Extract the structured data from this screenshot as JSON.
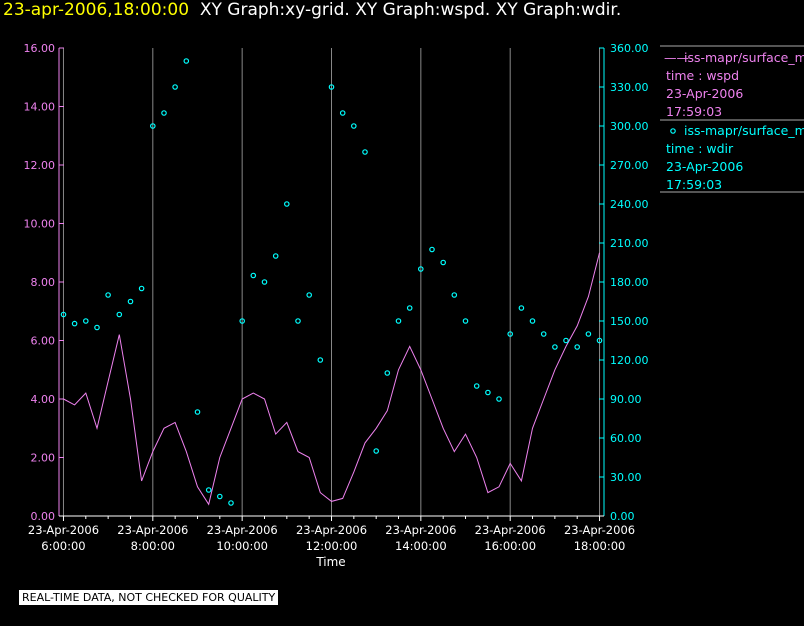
{
  "header": {
    "timestamp": "23-apr-2006,18:00:00",
    "graphs": "XY Graph:xy-grid.  XY Graph:wspd.  XY Graph:wdir."
  },
  "notice": "REAL-TIME DATA, NOT CHECKED FOR QUALITY",
  "legend": [
    {
      "marker": "——",
      "name": "iss-mapr/surface_m",
      "var": "time : wspd",
      "date": "23-Apr-2006",
      "time": "17:59:03",
      "color": "#ee82ee"
    },
    {
      "marker": "o",
      "name": "iss-mapr/surface_m",
      "var": "time : wdir",
      "date": "23-Apr-2006",
      "time": "17:59:03",
      "color": "#00ffff"
    }
  ],
  "chart_data": {
    "type": "line",
    "xlabel": "Time",
    "xlim": [
      5.9,
      18.1
    ],
    "x_ticks": [
      6,
      8,
      10,
      12,
      14,
      16,
      18
    ],
    "x_tick_labels": [
      [
        "23-Apr-2006",
        "6:00:00"
      ],
      [
        "23-Apr-2006",
        "8:00:00"
      ],
      [
        "23-Apr-2006",
        "10:00:00"
      ],
      [
        "23-Apr-2006",
        "12:00:00"
      ],
      [
        "23-Apr-2006",
        "14:00:00"
      ],
      [
        "23-Apr-2006",
        "16:00:00"
      ],
      [
        "23-Apr-2006",
        "18:00:00"
      ]
    ],
    "y_left": {
      "lim": [
        0,
        16
      ],
      "ticks": [
        "0.00",
        "2.00",
        "4.00",
        "6.00",
        "8.00",
        "10.00",
        "12.00",
        "14.00",
        "16.00"
      ],
      "color": "#ee82ee"
    },
    "y_right": {
      "lim": [
        0,
        360
      ],
      "ticks": [
        "0.00",
        "30.00",
        "60.00",
        "90.00",
        "120.00",
        "150.00",
        "180.00",
        "210.00",
        "240.00",
        "270.00",
        "300.00",
        "330.00",
        "360.00"
      ],
      "color": "#00ffff"
    },
    "grid": "vertical",
    "series": [
      {
        "name": "wspd",
        "style": "line",
        "color": "#ee82ee",
        "axis": "left",
        "x": [
          6.0,
          6.25,
          6.5,
          6.75,
          7.0,
          7.25,
          7.5,
          7.75,
          8.0,
          8.25,
          8.5,
          8.75,
          9.0,
          9.25,
          9.5,
          9.75,
          10.0,
          10.25,
          10.5,
          10.75,
          11.0,
          11.25,
          11.5,
          11.75,
          12.0,
          12.25,
          12.5,
          12.75,
          13.0,
          13.25,
          13.5,
          13.75,
          14.0,
          14.25,
          14.5,
          14.75,
          15.0,
          15.25,
          15.5,
          15.75,
          16.0,
          16.25,
          16.5,
          16.75,
          17.0,
          17.25,
          17.5,
          17.75,
          18.0
        ],
        "y": [
          4.0,
          3.8,
          4.2,
          3.0,
          4.6,
          6.2,
          4.0,
          1.2,
          2.2,
          3.0,
          3.2,
          2.2,
          1.0,
          0.4,
          2.0,
          3.0,
          4.0,
          4.2,
          4.0,
          2.8,
          3.2,
          2.2,
          2.0,
          0.8,
          0.5,
          0.6,
          1.5,
          2.5,
          3.0,
          3.6,
          5.0,
          5.8,
          5.0,
          4.0,
          3.0,
          2.2,
          2.8,
          2.0,
          0.8,
          1.0,
          1.8,
          1.2,
          3.0,
          4.0,
          5.0,
          5.8,
          6.5,
          7.5,
          9.0
        ]
      },
      {
        "name": "wdir",
        "style": "markers",
        "color": "#00ffff",
        "axis": "right",
        "x": [
          6.0,
          6.25,
          6.5,
          6.75,
          7.0,
          7.25,
          7.5,
          7.75,
          8.0,
          8.25,
          8.5,
          8.75,
          9.0,
          9.25,
          9.5,
          9.75,
          10.0,
          10.25,
          10.5,
          10.75,
          11.0,
          11.25,
          11.5,
          11.75,
          12.0,
          12.25,
          12.5,
          12.75,
          13.0,
          13.25,
          13.5,
          13.75,
          14.0,
          14.25,
          14.5,
          14.75,
          15.0,
          15.25,
          15.5,
          15.75,
          16.0,
          16.25,
          16.5,
          16.75,
          17.0,
          17.25,
          17.5,
          17.75,
          18.0
        ],
        "y": [
          155,
          148,
          150,
          145,
          170,
          155,
          165,
          175,
          300,
          310,
          330,
          350,
          80,
          20,
          15,
          10,
          150,
          185,
          180,
          200,
          240,
          150,
          170,
          120,
          330,
          310,
          300,
          280,
          50,
          110,
          150,
          160,
          190,
          205,
          195,
          170,
          150,
          100,
          95,
          90,
          140,
          160,
          150,
          140,
          130,
          135,
          130,
          140,
          135
        ]
      }
    ]
  }
}
